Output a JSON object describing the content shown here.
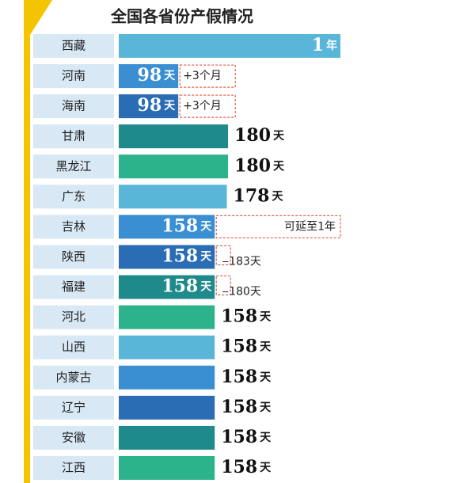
{
  "chart_data": {
    "type": "bar",
    "orientation": "horizontal",
    "title": "全国各省份产假情况",
    "categories": [
      "西藏",
      "河南",
      "海南",
      "甘肃",
      "黑龙江",
      "广东",
      "吉林",
      "陕西",
      "福建",
      "河北",
      "山西",
      "内蒙古",
      "辽宁",
      "安徽",
      "江西"
    ],
    "values": [
      365,
      98,
      98,
      180,
      180,
      178,
      158,
      158,
      158,
      158,
      158,
      158,
      158,
      158,
      158
    ],
    "value_labels": [
      "1年",
      "98天",
      "98天",
      "180天",
      "180天",
      "178天",
      "158天",
      "158天",
      "158天",
      "158天",
      "158天",
      "158天",
      "158天",
      "158天",
      "158天"
    ],
    "notes": [
      null,
      "+3个月",
      "+3个月",
      null,
      null,
      null,
      "可延至1年",
      "183天",
      "180天",
      null,
      null,
      null,
      null,
      null,
      null
    ],
    "colors": [
      "#5ab6d9",
      "#3a8fd2",
      "#2a6db5",
      "#1f8a8c",
      "#2db38b",
      "#5ab6d9",
      "#3a8fd2",
      "#2a6db5",
      "#1f8a8c",
      "#2db38b",
      "#5ab6d9",
      "#3a8fd2",
      "#2a6db5",
      "#1f8a8c",
      "#2db38b"
    ]
  }
}
